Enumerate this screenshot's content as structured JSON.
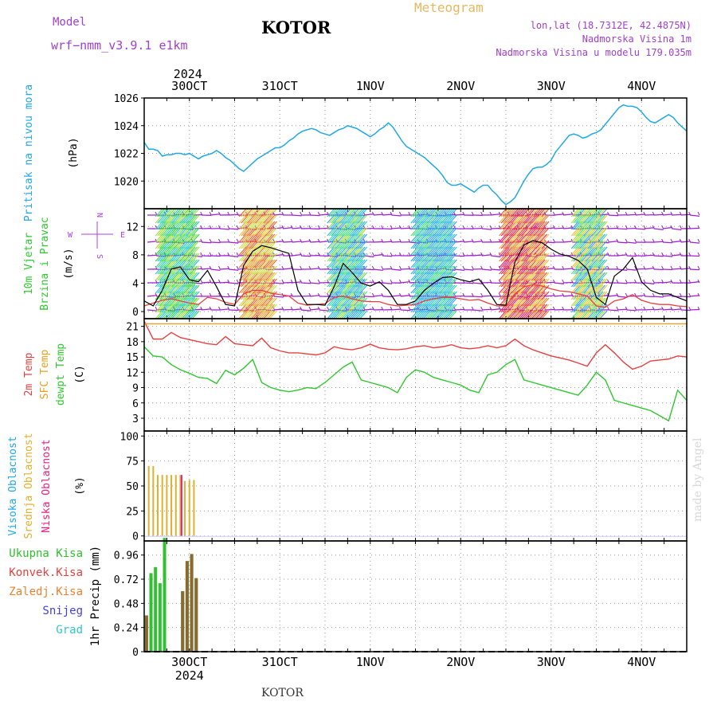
{
  "header": {
    "model_label": "Model",
    "model_version": "wrf−nmm_v3.9.1  e1km",
    "station": "KOTOR",
    "title": "Meteogram",
    "lonlat": "lon,lat (18.7312E, 42.4875N)",
    "elevation": "Nadmorska Visina 1m",
    "model_elevation": "Nadmorska Visina u modelu 179.035m"
  },
  "footer": {
    "station": "KOTOR",
    "watermark": "made by Angel"
  },
  "time_axis": {
    "year": "2024",
    "labels": [
      "30OCT",
      "31OCT",
      "1NOV",
      "2NOV",
      "3NOV",
      "4NOV"
    ],
    "range_hours": [
      0,
      120
    ],
    "label_positions_hours": [
      10,
      30,
      50,
      70,
      90,
      110
    ]
  },
  "colors": {
    "pressure": "#20a8e8",
    "temp2m": "#e84040",
    "sfc_temp": "#e8a020",
    "dewpoint": "#30c830",
    "wind_speed": "#000000",
    "wind_gust": "#e84040",
    "cloud_high": "#20a8e8",
    "cloud_mid": "#e0b030",
    "cloud_low": "#e82080",
    "precip_total": "#30c030",
    "precip_conv": "#e84040",
    "precip_strat": "#f08030",
    "snow": "#4040e8",
    "hail": "#30c8c8",
    "precip_other": "#8a6a30",
    "wind_label": "#b040e0"
  },
  "chart_data": [
    {
      "type": "line",
      "panel": "pressure",
      "ylabel": "Pritisak na nivou mora",
      "units": "(hPa)",
      "ylim": [
        1018,
        1026
      ],
      "yticks": [
        1020,
        1022,
        1024,
        1026
      ],
      "grid": true,
      "x": [
        0,
        1,
        2,
        3,
        4,
        5,
        6,
        7,
        8,
        9,
        10,
        11,
        12,
        13,
        14,
        15,
        16,
        17,
        18,
        19,
        20,
        21,
        22,
        23,
        24,
        25,
        26,
        27,
        28,
        29,
        30,
        31,
        32,
        33,
        34,
        35,
        36,
        37,
        38,
        39,
        40,
        41,
        42,
        43,
        44,
        45,
        46,
        47,
        48,
        49,
        50,
        51,
        52,
        53,
        54,
        55,
        56,
        57,
        58,
        59,
        60,
        61,
        62,
        63,
        64,
        65,
        66,
        67,
        68,
        69,
        70,
        71,
        72,
        73,
        74,
        75,
        76,
        77,
        78,
        79,
        80,
        81,
        82,
        83,
        84,
        85,
        86,
        87,
        88,
        89,
        90,
        91,
        92,
        93,
        94,
        95,
        96,
        97,
        98,
        99,
        100,
        101,
        102,
        103,
        104,
        105,
        106,
        107,
        108,
        109,
        110,
        111,
        112,
        113,
        114,
        115,
        116,
        117,
        118,
        119,
        120
      ],
      "series": [
        {
          "values": [
            1022.8,
            1022.3,
            1022.3,
            1022.2,
            1021.8,
            1021.9,
            1021.9,
            1022.0,
            1022.0,
            1021.9,
            1022.0,
            1021.8,
            1021.6,
            1021.8,
            1021.9,
            1022.0,
            1022.2,
            1022.0,
            1021.7,
            1021.5,
            1021.2,
            1020.9,
            1020.7,
            1021.0,
            1021.3,
            1021.6,
            1021.8,
            1022.0,
            1022.2,
            1022.4,
            1022.4,
            1022.6,
            1022.9,
            1023.1,
            1023.4,
            1023.6,
            1023.7,
            1023.8,
            1023.7,
            1023.5,
            1023.4,
            1023.3,
            1023.5,
            1023.7,
            1023.8,
            1024.0,
            1023.9,
            1023.8,
            1023.6,
            1023.4,
            1023.2,
            1023.4,
            1023.7,
            1023.9,
            1024.2,
            1023.9,
            1023.4,
            1022.9,
            1022.5,
            1022.3,
            1022.1,
            1021.9,
            1021.7,
            1021.4,
            1021.1,
            1020.8,
            1020.4,
            1019.9,
            1019.7,
            1019.7,
            1019.8,
            1019.6,
            1019.4,
            1019.2,
            1019.5,
            1019.7,
            1019.7,
            1019.3,
            1019.0,
            1018.6,
            1018.3,
            1018.5,
            1018.8,
            1019.4,
            1020.0,
            1020.5,
            1020.9,
            1021.0,
            1021.0,
            1021.2,
            1021.5,
            1022.1,
            1022.5,
            1022.9,
            1023.3,
            1023.4,
            1023.3,
            1023.1,
            1023.2,
            1023.4,
            1023.5,
            1023.7,
            1024.1,
            1024.5,
            1024.9,
            1025.3,
            1025.5,
            1025.4,
            1025.4,
            1025.3,
            1025.0,
            1024.6,
            1024.3,
            1024.2,
            1024.4,
            1024.6,
            1024.8,
            1024.6,
            1024.2,
            1023.9,
            1023.6
          ]
        }
      ]
    },
    {
      "type": "line",
      "panel": "wind",
      "ylabel": "10m Vjetar Brzina i Pravac",
      "units": "(m/s)",
      "compass": "N S W E",
      "ylim": [
        -1,
        14.5
      ],
      "yticks": [
        0,
        4,
        8,
        12
      ],
      "grid": true,
      "x": [
        0,
        2,
        4,
        6,
        8,
        10,
        12,
        14,
        16,
        18,
        20,
        22,
        24,
        26,
        28,
        30,
        32,
        34,
        36,
        38,
        40,
        42,
        44,
        46,
        48,
        50,
        52,
        54,
        56,
        58,
        60,
        62,
        64,
        66,
        68,
        70,
        72,
        74,
        76,
        78,
        80,
        82,
        84,
        86,
        88,
        90,
        92,
        94,
        96,
        98,
        100,
        102,
        104,
        106,
        108,
        110,
        112,
        114,
        116,
        118,
        120
      ],
      "series": [
        {
          "name": "speed",
          "values": [
            1.5,
            0.8,
            3.0,
            6.0,
            6.3,
            4.5,
            4.2,
            5.8,
            3.5,
            1.0,
            0.8,
            6.5,
            8.5,
            9.3,
            9.0,
            8.6,
            8.2,
            3.0,
            1.0,
            1.0,
            0.9,
            3.5,
            6.8,
            5.5,
            4.0,
            3.6,
            4.2,
            3.0,
            1.0,
            1.0,
            1.5,
            3.0,
            4.0,
            4.8,
            4.9,
            4.5,
            4.2,
            4.6,
            3.0,
            1.0,
            0.9,
            7.0,
            9.4,
            10.0,
            9.7,
            8.8,
            8.1,
            7.8,
            7.2,
            6.0,
            2.0,
            1.0,
            5.0,
            6.0,
            7.6,
            4.2,
            3.0,
            2.5,
            2.5,
            2.0,
            1.5
          ]
        },
        {
          "name": "gust",
          "values": [
            0.8,
            1.2,
            1.6,
            1.8,
            1.5,
            1.2,
            1.0,
            2.0,
            1.8,
            1.3,
            1.0,
            2.5,
            3.0,
            3.0,
            2.6,
            2.4,
            2.2,
            1.2,
            0.9,
            1.0,
            1.1,
            2.0,
            2.2,
            1.8,
            1.5,
            1.4,
            1.4,
            1.0,
            0.8,
            0.9,
            1.0,
            1.5,
            1.8,
            2.0,
            2.0,
            1.8,
            1.6,
            1.7,
            1.2,
            0.8,
            0.8,
            2.5,
            3.5,
            3.8,
            3.6,
            3.2,
            2.9,
            2.8,
            2.5,
            2.2,
            0.8,
            0.6,
            1.5,
            1.8,
            2.4,
            1.6,
            1.2,
            1.0,
            1.0,
            0.8,
            0.7
          ]
        }
      ]
    },
    {
      "type": "line",
      "panel": "temperature",
      "ylabel": "2m Temp / SFC Temp / dewpt Temp",
      "units": "(C)",
      "ylim": [
        0.5,
        22.5
      ],
      "yticks": [
        3,
        6,
        9,
        12,
        15,
        18,
        21
      ],
      "grid": true,
      "x": [
        0,
        2,
        4,
        6,
        8,
        10,
        12,
        14,
        16,
        18,
        20,
        22,
        24,
        26,
        28,
        30,
        32,
        34,
        36,
        38,
        40,
        42,
        44,
        46,
        48,
        50,
        52,
        54,
        56,
        58,
        60,
        62,
        64,
        66,
        68,
        70,
        72,
        74,
        76,
        78,
        80,
        82,
        84,
        86,
        88,
        90,
        92,
        94,
        96,
        98,
        100,
        102,
        104,
        106,
        108,
        110,
        112,
        114,
        116,
        118,
        120
      ],
      "series": [
        {
          "name": "2m Temp",
          "values": [
            22,
            18.5,
            18.5,
            19.8,
            18.8,
            18.4,
            18.0,
            17.6,
            17.4,
            19.0,
            17.6,
            17.4,
            17.2,
            18.7,
            16.8,
            16.2,
            15.8,
            15.8,
            15.6,
            15.4,
            15.8,
            17.0,
            16.6,
            16.4,
            16.8,
            17.5,
            16.8,
            16.5,
            16.4,
            16.6,
            17.0,
            17.2,
            16.8,
            17.0,
            17.4,
            16.8,
            16.6,
            16.8,
            17.2,
            16.8,
            17.2,
            18.5,
            17.2,
            16.4,
            15.8,
            15.2,
            14.8,
            14.4,
            13.8,
            13.2,
            15.8,
            17.4,
            15.8,
            14.0,
            12.6,
            13.2,
            14.2,
            14.4,
            14.6,
            15.2,
            15.0
          ]
        },
        {
          "name": "SFC Temp",
          "values": [
            21.5,
            21.5,
            21.5,
            21.5,
            21.5,
            21.5,
            21.5,
            21.5,
            21.5,
            21.5,
            21.5,
            21.5,
            21.5,
            21.5,
            21.5,
            21.5,
            21.5,
            21.5,
            21.5,
            21.5,
            21.5,
            21.5,
            21.5,
            21.5,
            21.5,
            21.5,
            21.5,
            21.5,
            21.5,
            21.5,
            21.5,
            21.5,
            21.5,
            21.5,
            21.5,
            21.5,
            21.5,
            21.5,
            21.5,
            21.5,
            21.5,
            21.5,
            21.5,
            21.5,
            21.5,
            21.5,
            21.5,
            21.5,
            21.5,
            21.5,
            21.5,
            21.5,
            21.5,
            21.5,
            21.5,
            21.5,
            21.5,
            21.5,
            21.5,
            21.5,
            21.5
          ]
        },
        {
          "name": "dewpt Temp",
          "values": [
            17.0,
            15.2,
            15.0,
            13.5,
            12.5,
            11.8,
            11.0,
            10.8,
            9.8,
            12.4,
            11.5,
            12.8,
            14.5,
            10.0,
            9.0,
            8.5,
            8.2,
            8.5,
            9.0,
            8.8,
            10.0,
            11.5,
            13.0,
            14.0,
            10.5,
            10.0,
            9.5,
            9.0,
            8.0,
            11.0,
            12.5,
            12.0,
            11.0,
            10.5,
            10.0,
            9.5,
            8.5,
            8.0,
            11.5,
            12.0,
            13.5,
            14.5,
            10.5,
            10.0,
            9.5,
            9.0,
            8.5,
            8.0,
            7.5,
            9.5,
            12.0,
            10.5,
            6.5,
            6.0,
            5.5,
            5.0,
            4.5,
            3.5,
            2.5,
            8.5,
            6.5
          ]
        }
      ]
    },
    {
      "type": "bar",
      "panel": "clouds",
      "ylabel": "Visoka Oblacnost / Srednja Oblacnost / Niska Oblacnost",
      "units": "(%)",
      "ylim": [
        -5,
        105
      ],
      "yticks": [
        0,
        25,
        50,
        75,
        100
      ],
      "grid": true,
      "x": [
        1,
        2,
        3,
        4,
        5,
        6,
        7,
        8,
        9,
        10,
        11,
        12
      ],
      "series": [
        {
          "name": "Srednja Oblacnost",
          "values": [
            70,
            70,
            61,
            61,
            61,
            61,
            61,
            61,
            55,
            56,
            56,
            0
          ]
        },
        {
          "name": "Niska Oblacnost",
          "values": [
            0,
            0,
            0,
            0,
            0,
            0,
            0,
            61,
            0,
            0,
            0,
            0
          ]
        },
        {
          "name": "Visoka Oblacnost",
          "values": [
            0,
            0,
            0,
            0,
            0,
            0,
            0,
            0,
            0,
            0,
            0,
            0
          ]
        }
      ]
    },
    {
      "type": "bar",
      "panel": "precipitation",
      "ylabel": "1hr Precip",
      "units": "(mm)",
      "ylim": [
        0,
        1.1
      ],
      "yticks": [
        0,
        0.24,
        0.48,
        0.72,
        0.96
      ],
      "grid": true,
      "legend": [
        "Ukupna Kisa",
        "Konvek.Kisa",
        "Zaledj.Kisa",
        "Snijeg",
        "Grad"
      ],
      "x": [
        0.5,
        1.5,
        2.5,
        3.5,
        4.5,
        5.5,
        8.5,
        9.5,
        10.5,
        11.5
      ],
      "series": [
        {
          "name": "Ukupna Kisa",
          "values": [
            0.36,
            0.78,
            0.84,
            0.68,
            1.13,
            0.0,
            0.6,
            0.9,
            0.97,
            0.73
          ]
        },
        {
          "name": "other",
          "values": [
            0.36,
            0.0,
            0.0,
            0.0,
            0.0,
            0.0,
            0.6,
            0.9,
            0.97,
            0.73
          ]
        }
      ]
    }
  ]
}
